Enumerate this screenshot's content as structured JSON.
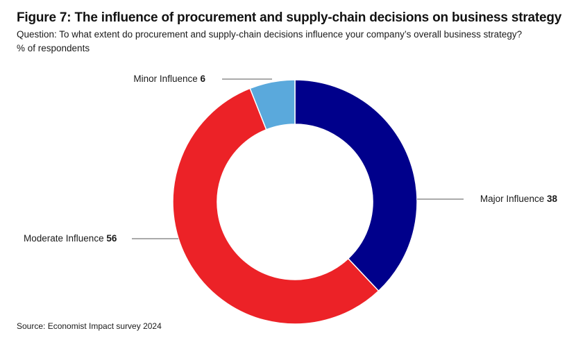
{
  "header": {
    "title": "Figure 7: The influence of procurement and supply-chain decisions on business strategy",
    "subtitle": "Question: To what extent do procurement and supply-chain decisions influence your company’s overall business strategy?",
    "unit": "% of respondents"
  },
  "source": "Source: Economist Impact survey 2024",
  "chart_data": {
    "type": "pie",
    "variant": "donut",
    "title": "Figure 7: The influence of procurement and supply-chain decisions on business strategy",
    "unit": "% of respondents",
    "slices": [
      {
        "label": "Major Influence",
        "value": 38,
        "color": "#00008b"
      },
      {
        "label": "Moderate Influence",
        "value": 56,
        "color": "#ec2227"
      },
      {
        "label": "Minor Influence",
        "value": 6,
        "color": "#5aa9dc"
      }
    ],
    "start": "12 o'clock",
    "direction": "clockwise"
  }
}
